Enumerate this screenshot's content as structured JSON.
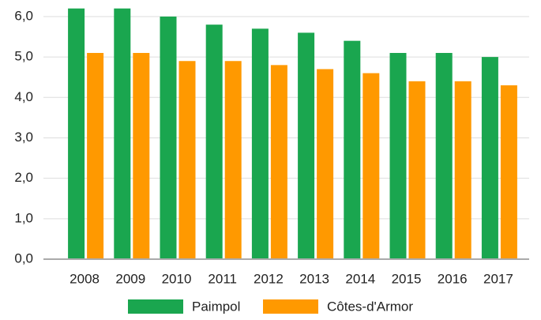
{
  "chart_data": {
    "type": "bar",
    "categories": [
      "2008",
      "2009",
      "2010",
      "2011",
      "2012",
      "2013",
      "2014",
      "2015",
      "2016",
      "2017"
    ],
    "series": [
      {
        "name": "Paimpol",
        "color": "#1aa64f",
        "values": [
          6.2,
          6.2,
          6.0,
          5.8,
          5.7,
          5.6,
          5.4,
          5.1,
          5.1,
          5.0
        ]
      },
      {
        "name": "Côtes-d'Armor",
        "color": "#ff9900",
        "values": [
          5.1,
          5.1,
          4.9,
          4.9,
          4.8,
          4.7,
          4.6,
          4.4,
          4.4,
          4.3
        ]
      }
    ],
    "ylim": [
      0,
      6.3
    ],
    "yticks": [
      {
        "value": 0,
        "label": "0,0"
      },
      {
        "value": 1,
        "label": "1,0"
      },
      {
        "value": 2,
        "label": "2,0"
      },
      {
        "value": 3,
        "label": "3,0"
      },
      {
        "value": 4,
        "label": "4,0"
      },
      {
        "value": 5,
        "label": "5,0"
      },
      {
        "value": 6,
        "label": "6,0"
      }
    ],
    "grid": true,
    "legend": "bottom"
  }
}
